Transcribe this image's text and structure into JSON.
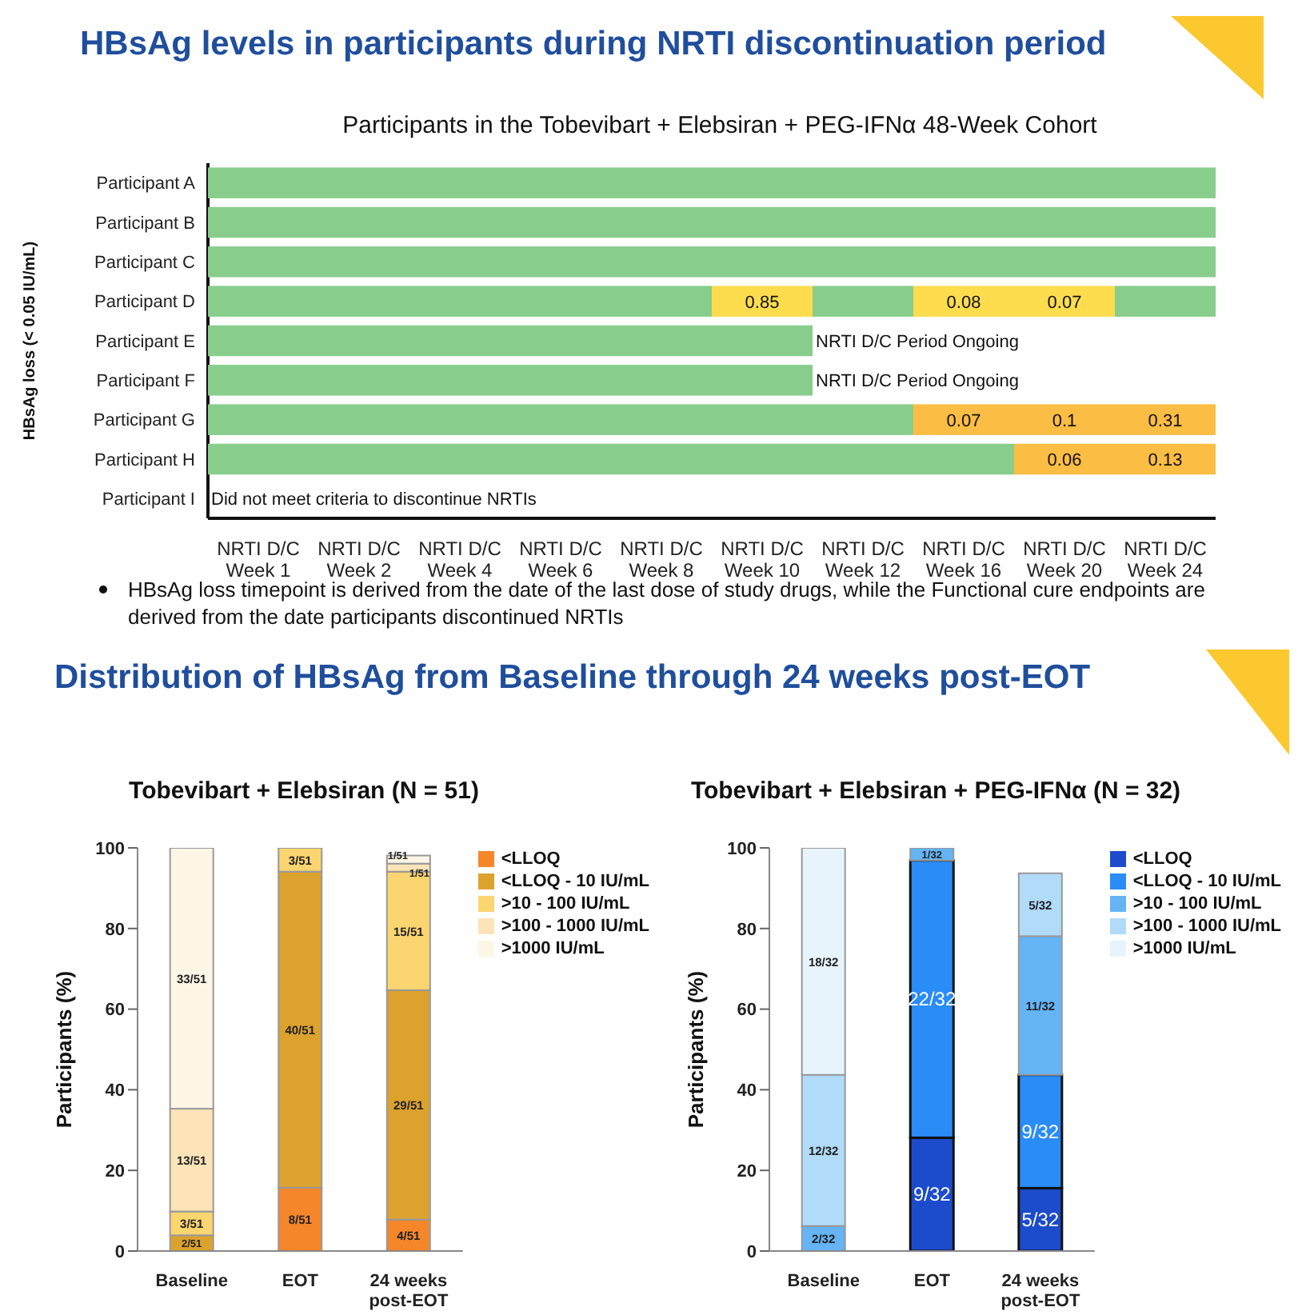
{
  "chart_data": [
    {
      "type": "heatmap",
      "title": "Participants in the Tobevibart + Elebsiran + PEG-IFNα 48-Week Cohort",
      "ylabel": "HBsAg loss (< 0.05 IU/mL)",
      "categories": [
        "NRTI D/C\nWeek 1",
        "NRTI D/C\nWeek 2",
        "NRTI D/C\nWeek 4",
        "NRTI D/C\nWeek 6",
        "NRTI D/C\nWeek 8",
        "NRTI D/C\nWeek 10",
        "NRTI D/C\nWeek 12",
        "NRTI D/C\nWeek 16",
        "NRTI D/C\nWeek 20",
        "NRTI D/C\nWeek 24"
      ],
      "y_categories": [
        "Participant A",
        "Participant B",
        "Participant C",
        "Participant D",
        "Participant E",
        "Participant F",
        "Participant G",
        "Participant H",
        "Participant I"
      ],
      "cells": [
        [
          null,
          null,
          null,
          null,
          null,
          null,
          null,
          null,
          null,
          null
        ],
        [
          null,
          null,
          null,
          null,
          null,
          null,
          null,
          null,
          null,
          null
        ],
        [
          null,
          null,
          null,
          null,
          null,
          null,
          null,
          null,
          null,
          null
        ],
        [
          null,
          null,
          null,
          null,
          null,
          0.85,
          null,
          0.08,
          0.07,
          null
        ],
        [
          null,
          null,
          null,
          null,
          null,
          null,
          null,
          null,
          null,
          null
        ],
        [
          null,
          null,
          null,
          null,
          null,
          null,
          null,
          null,
          null,
          null
        ],
        [
          null,
          null,
          null,
          null,
          null,
          null,
          null,
          0.07,
          0.1,
          0.31
        ],
        [
          null,
          null,
          null,
          null,
          null,
          null,
          null,
          null,
          0.06,
          0.13
        ],
        [
          null,
          null,
          null,
          null,
          null,
          null,
          null,
          null,
          null,
          null
        ]
      ],
      "cell_labels": [
        [
          null,
          null,
          null,
          null,
          null,
          null,
          null,
          null,
          null,
          null
        ],
        [
          null,
          null,
          null,
          null,
          null,
          null,
          null,
          null,
          null,
          null
        ],
        [
          null,
          null,
          null,
          null,
          null,
          null,
          null,
          null,
          null,
          null
        ],
        [
          null,
          null,
          null,
          null,
          null,
          "0.85",
          null,
          "0.08",
          "0.07",
          null
        ],
        [
          null,
          null,
          null,
          null,
          null,
          null,
          null,
          null,
          null,
          null
        ],
        [
          null,
          null,
          null,
          null,
          null,
          null,
          null,
          null,
          null,
          null
        ],
        [
          null,
          null,
          null,
          null,
          null,
          null,
          null,
          "0.07",
          "0.1",
          "0.31"
        ],
        [
          null,
          null,
          null,
          null,
          null,
          null,
          null,
          null,
          "0.06",
          "0.13"
        ],
        [
          null,
          null,
          null,
          null,
          null,
          null,
          null,
          null,
          null,
          null
        ]
      ],
      "colors": [
        [
          "#88cd8c",
          "#88cd8c",
          "#88cd8c",
          "#88cd8c",
          "#88cd8c",
          "#88cd8c",
          "#88cd8c",
          "#88cd8c",
          "#88cd8c",
          "#88cd8c"
        ],
        [
          "#88cd8c",
          "#88cd8c",
          "#88cd8c",
          "#88cd8c",
          "#88cd8c",
          "#88cd8c",
          "#88cd8c",
          "#88cd8c",
          "#88cd8c",
          "#88cd8c"
        ],
        [
          "#88cd8c",
          "#88cd8c",
          "#88cd8c",
          "#88cd8c",
          "#88cd8c",
          "#88cd8c",
          "#88cd8c",
          "#88cd8c",
          "#88cd8c",
          "#88cd8c"
        ],
        [
          "#88cd8c",
          "#88cd8c",
          "#88cd8c",
          "#88cd8c",
          "#88cd8c",
          "#fddc4e",
          "#88cd8c",
          "#fddc4e",
          "#fddc4e",
          "#88cd8c"
        ],
        [
          "#88cd8c",
          "#88cd8c",
          "#88cd8c",
          "#88cd8c",
          "#88cd8c",
          "#88cd8c",
          null,
          null,
          null,
          null
        ],
        [
          "#88cd8c",
          "#88cd8c",
          "#88cd8c",
          "#88cd8c",
          "#88cd8c",
          "#88cd8c",
          null,
          null,
          null,
          null
        ],
        [
          "#88cd8c",
          "#88cd8c",
          "#88cd8c",
          "#88cd8c",
          "#88cd8c",
          "#88cd8c",
          "#88cd8c",
          "#fbbd43",
          "#fbbd43",
          "#fbbd43"
        ],
        [
          "#88cd8c",
          "#88cd8c",
          "#88cd8c",
          "#88cd8c",
          "#88cd8c",
          "#88cd8c",
          "#88cd8c",
          "#88cd8c",
          "#fbbd43",
          "#fbbd43"
        ],
        [
          null,
          null,
          null,
          null,
          null,
          null,
          null,
          null,
          null,
          null
        ]
      ],
      "annotations": [
        "HBsAg levels in participants during NRTI discontinuation period",
        "HBsAg loss timepoint is derived from the date of the last dose of study drugs, while the Functional cure endpoints are derived from the date participants discontinued NRTIs",
        "NRTI D/C Period Ongoing",
        "NRTI D/C Period Ongoing",
        "Did not meet criteria to discontinue NRTIs"
      ]
    },
    {
      "type": "bar",
      "title": "Tobevibart + Elebsiran (N = 51)",
      "ylabel": "Participants (%)",
      "stacked": true,
      "legend": "right",
      "categories": [
        "Baseline",
        "EOT",
        "24 weeks\npost-EOT"
      ],
      "ylim": [
        0,
        100
      ],
      "yticks": [
        0,
        20,
        40,
        60,
        80,
        100
      ],
      "annotations": [
        "Distribution of HBsAg from Baseline through 24 weeks post-EOT"
      ],
      "series": [
        {
          "name": "<LLOQ",
          "color": "#f5862a",
          "values": [
            0,
            15.7,
            7.8
          ],
          "value_labels": [
            null,
            "8/51",
            "4/51"
          ]
        },
        {
          "name": "<LLOQ - 10 IU/mL",
          "color": "#dca22e",
          "values": [
            3.9,
            78.4,
            56.9
          ],
          "value_labels": [
            "2/51",
            "40/51",
            "29/51"
          ]
        },
        {
          "name": ">10 - 100 IU/mL",
          "color": "#fbd570",
          "values": [
            5.9,
            5.9,
            29.4
          ],
          "value_labels": [
            "3/51",
            "3/51",
            "15/51"
          ]
        },
        {
          "name": ">100 - 1000 IU/mL",
          "color": "#fce4b8",
          "values": [
            25.5,
            0,
            2
          ],
          "value_labels": [
            "13/51",
            null,
            "1/51"
          ]
        },
        {
          "name": ">1000 IU/mL",
          "color": "#fdf6e6",
          "values": [
            64.7,
            0,
            2
          ],
          "value_labels": [
            "33/51",
            null,
            "1/51"
          ]
        }
      ]
    },
    {
      "type": "bar",
      "title": "Tobevibart + Elebsiran + PEG-IFNα (N = 32)",
      "ylabel": "Participants (%)",
      "stacked": true,
      "legend": "right",
      "categories": [
        "Baseline",
        "EOT",
        "24 weeks\npost-EOT"
      ],
      "ylim": [
        0,
        100
      ],
      "yticks": [
        0,
        20,
        40,
        60,
        80,
        100
      ],
      "series": [
        {
          "name": "<LLOQ",
          "color": "#1c4bcc",
          "values": [
            0,
            28.1,
            15.6
          ],
          "value_labels": [
            null,
            "9/32",
            "5/32"
          ]
        },
        {
          "name": "<LLOQ - 10 IU/mL",
          "color": "#2a8cf7",
          "values": [
            0,
            68.8,
            28.1
          ],
          "value_labels": [
            null,
            "22/32",
            "9/32"
          ]
        },
        {
          "name": ">10 - 100 IU/mL",
          "color": "#64b4f6",
          "values": [
            6.2,
            3.1,
            34.4
          ],
          "value_labels": [
            "2/32",
            "1/32",
            "11/32"
          ]
        },
        {
          "name": ">100 - 1000 IU/mL",
          "color": "#b0dbf9",
          "values": [
            37.5,
            0,
            15.6
          ],
          "value_labels": [
            "12/32",
            null,
            "5/32"
          ]
        },
        {
          "name": ">1000 IU/mL",
          "color": "#e8f4fc",
          "values": [
            56.3,
            0,
            0
          ],
          "value_labels": [
            "18/32",
            null,
            null
          ]
        }
      ]
    }
  ]
}
